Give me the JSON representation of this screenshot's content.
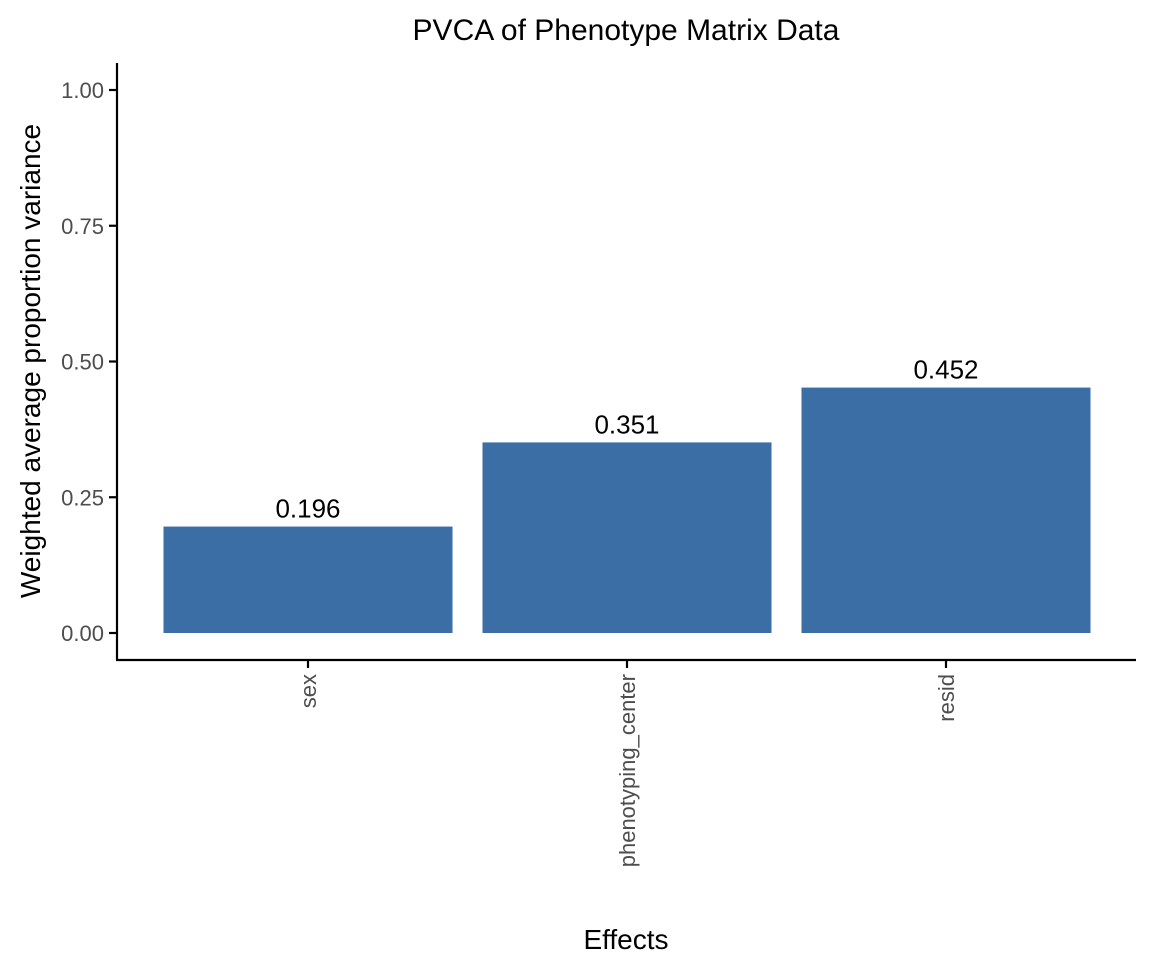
{
  "chart_data": {
    "type": "bar",
    "title": "PVCA of Phenotype Matrix Data",
    "xlabel": "Effects",
    "ylabel": "Weighted average proportion variance",
    "categories": [
      "sex",
      "phenotyping_center",
      "resid"
    ],
    "values": [
      0.196,
      0.351,
      0.452
    ],
    "data_labels": [
      "0.196",
      "0.351",
      "0.452"
    ],
    "ylim": [
      0,
      1
    ],
    "yticks": [
      0,
      0.25,
      0.5,
      0.75,
      1.0
    ],
    "ytick_labels": [
      "0.00",
      "0.25",
      "0.50",
      "0.75",
      "1.00"
    ],
    "bar_color": "#3A6EA5",
    "grid": false,
    "legend": "none",
    "x_tick_label_rotation": "vertical"
  }
}
